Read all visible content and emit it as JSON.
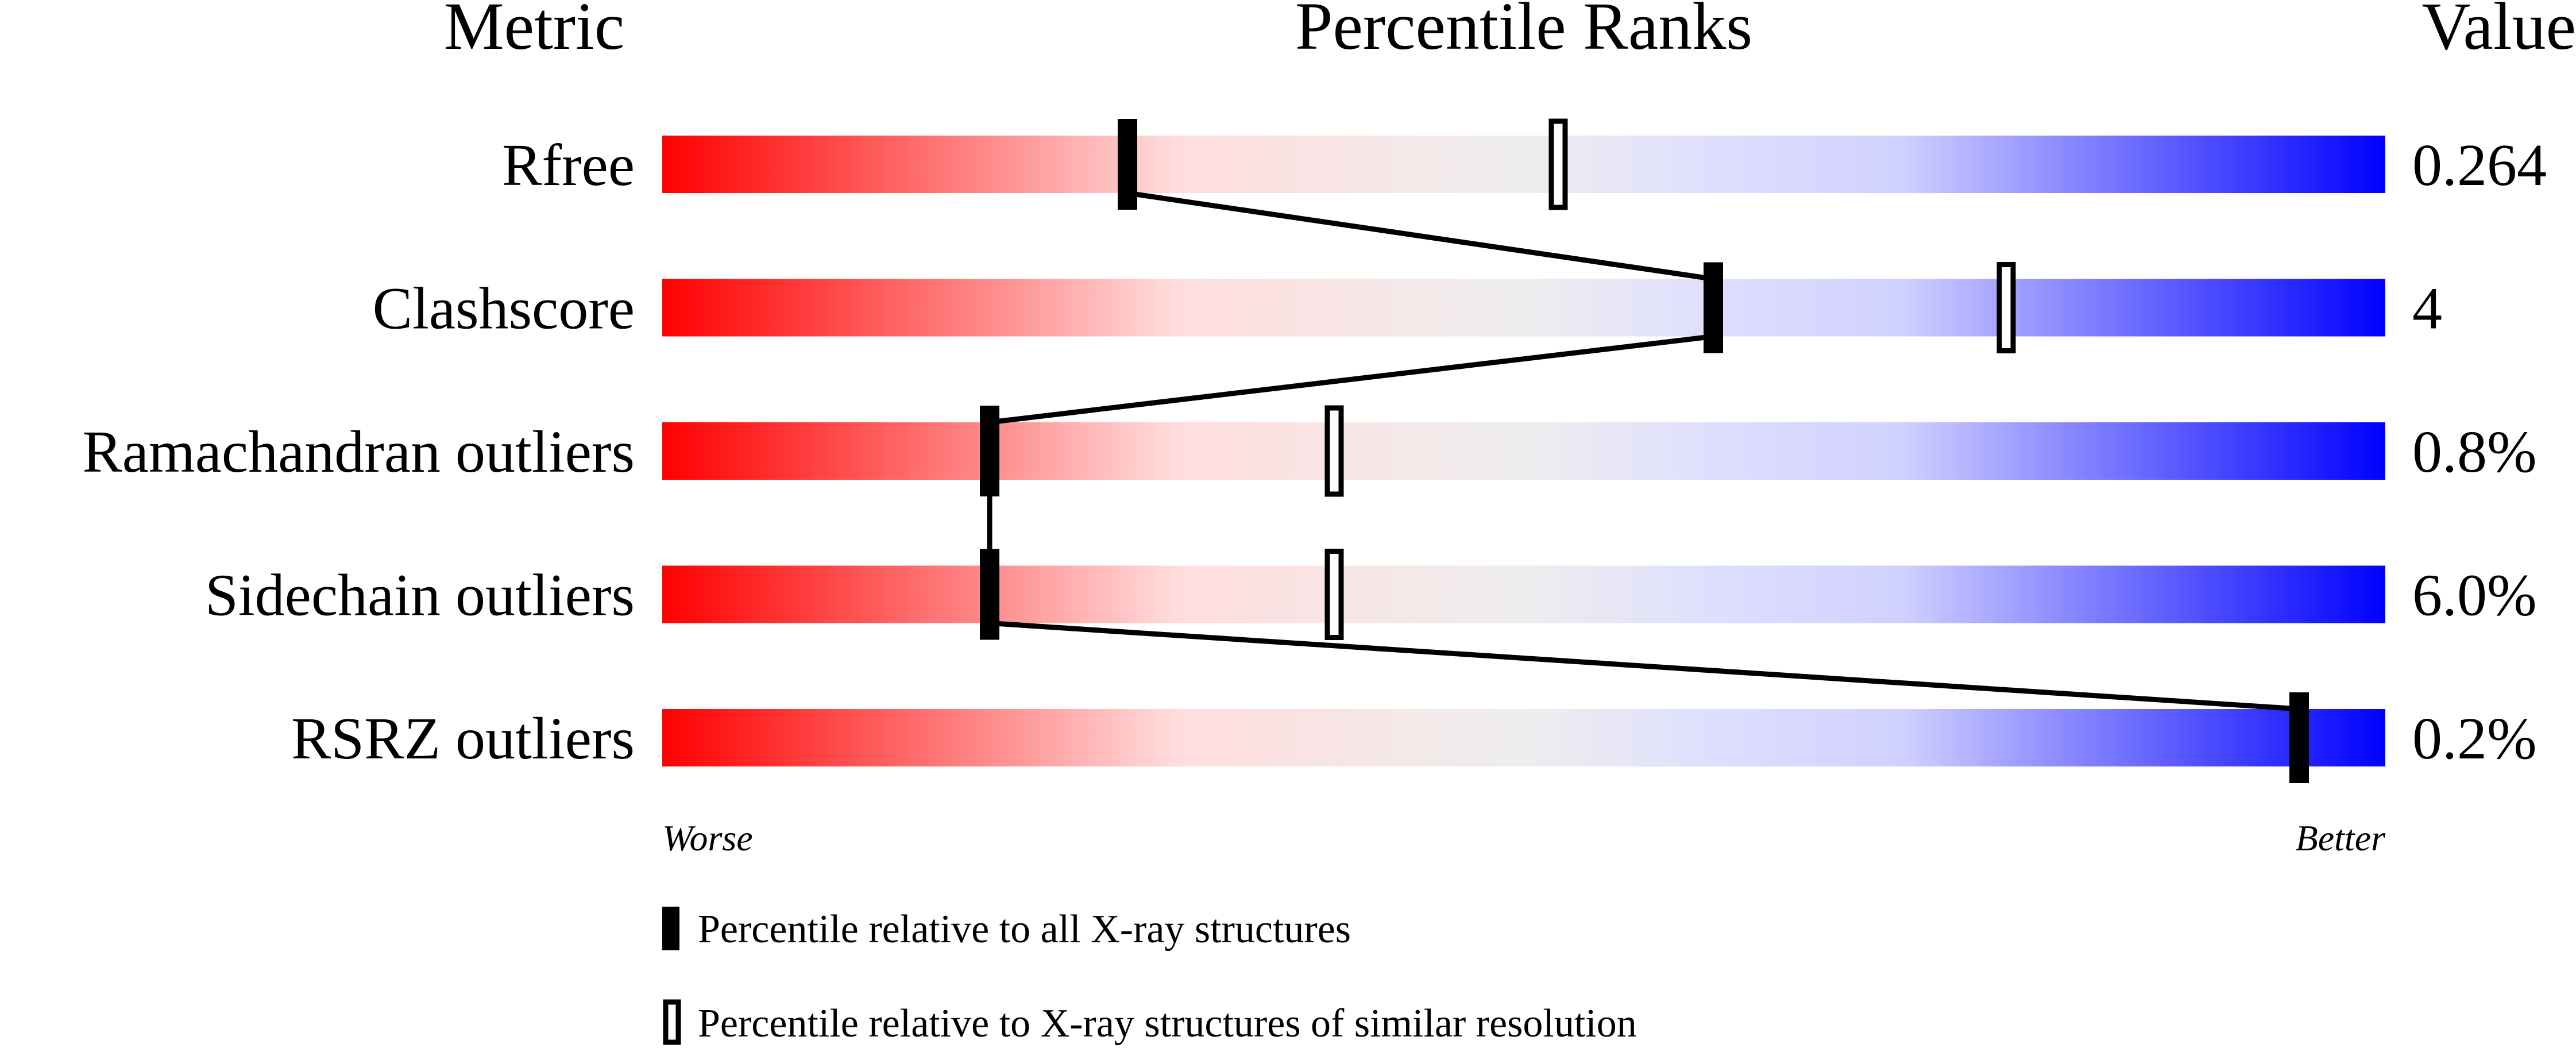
{
  "chart_data": {
    "type": "percentile-ranks",
    "headers": {
      "metric": "Metric",
      "ranks": "Percentile Ranks",
      "value": "Value"
    },
    "xlim": [
      0,
      100
    ],
    "metrics": [
      {
        "name": "Rfree",
        "value": "0.264",
        "percentile_all": 27,
        "percentile_similar": 52
      },
      {
        "name": "Clashscore",
        "value": "4",
        "percentile_all": 61,
        "percentile_similar": 78
      },
      {
        "name": "Ramachandran outliers",
        "value": "0.8%",
        "percentile_all": 19,
        "percentile_similar": 39
      },
      {
        "name": "Sidechain outliers",
        "value": "6.0%",
        "percentile_all": 19,
        "percentile_similar": 39
      },
      {
        "name": "RSRZ outliers",
        "value": "0.2%",
        "percentile_all": 95,
        "percentile_similar": null
      }
    ],
    "scale_labels": {
      "worse": "Worse",
      "better": "Better"
    },
    "legend": [
      {
        "marker": "filled",
        "label": "Percentile relative to all X-ray structures"
      },
      {
        "marker": "open",
        "label": "Percentile relative to X-ray structures of similar resolution"
      }
    ],
    "colors": {
      "worse": "#ff0000",
      "mid": "#eeeeee",
      "better": "#0000ff"
    }
  }
}
